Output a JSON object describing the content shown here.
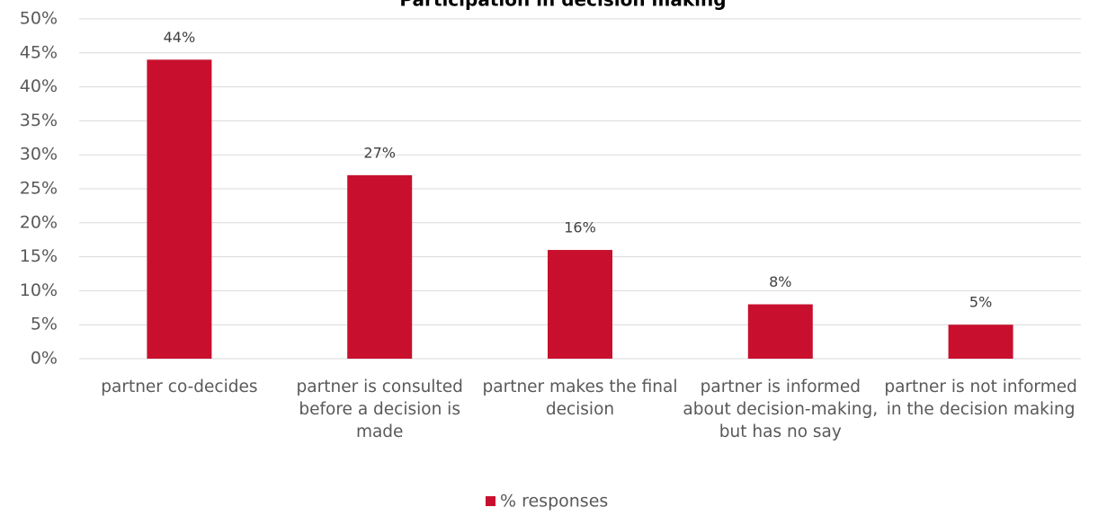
{
  "chart_data": {
    "type": "bar",
    "title": "Participation in decision making",
    "categories": [
      "partner co-decides",
      "partner is consulted before a decision is made",
      "partner makes the final decision",
      "partner is informed about decision-making, but has no say",
      "partner is not informed in the decision making"
    ],
    "series": [
      {
        "name": "% responses",
        "color": "#c8102e",
        "values": [
          44,
          27,
          16,
          8,
          5
        ],
        "value_labels": [
          "44%",
          "27%",
          "16%",
          "8%",
          "5%"
        ]
      }
    ],
    "ylim": [
      0,
      50
    ],
    "yticks": [
      {
        "value": 0,
        "label": "0%"
      },
      {
        "value": 5,
        "label": "5%"
      },
      {
        "value": 10,
        "label": "10%"
      },
      {
        "value": 15,
        "label": "15%"
      },
      {
        "value": 20,
        "label": "20%"
      },
      {
        "value": 25,
        "label": "25%"
      },
      {
        "value": 30,
        "label": "30%"
      },
      {
        "value": 35,
        "label": "35%"
      },
      {
        "value": 40,
        "label": "40%"
      },
      {
        "value": 45,
        "label": "45%"
      },
      {
        "value": 50,
        "label": "50%"
      }
    ],
    "grid": true,
    "legend": "bottom"
  }
}
